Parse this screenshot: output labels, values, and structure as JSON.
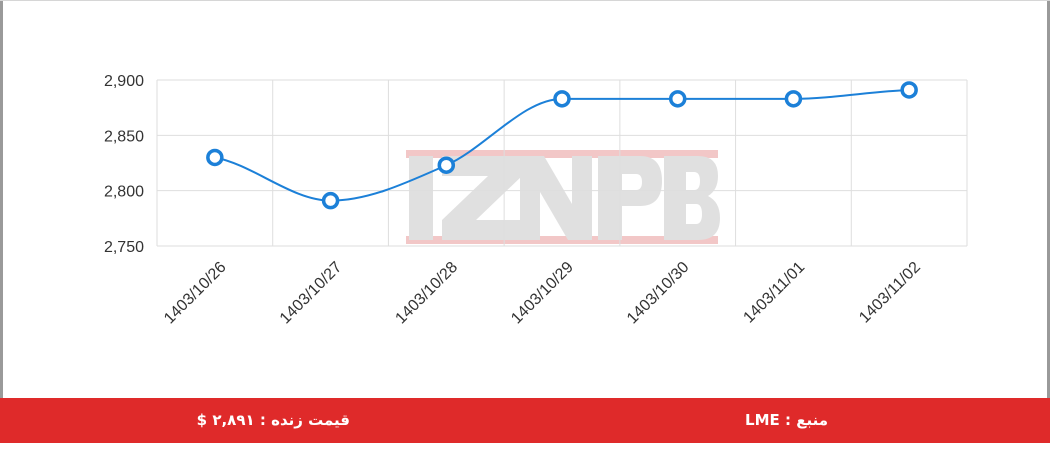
{
  "chart_data": {
    "type": "line",
    "categories": [
      "1403/10/26",
      "1403/10/27",
      "1403/10/28",
      "1403/10/29",
      "1403/10/30",
      "1403/11/01",
      "1403/11/02"
    ],
    "series": [
      {
        "values": [
          2830,
          2791,
          2823,
          2883,
          2883,
          2883,
          2891
        ]
      }
    ],
    "ylim": [
      2750,
      2900
    ],
    "yticks": [
      "2,750",
      "2,800",
      "2,850",
      "2,900"
    ],
    "ytick_values": [
      2750,
      2800,
      2850,
      2900
    ],
    "grid": true,
    "smooth": true,
    "line_color": "#1c80d8",
    "marker_fill": "#ffffff",
    "grid_color": "#dedede"
  },
  "watermark": "IZNPB",
  "footer": {
    "live_price": "قیمت زنده : ۲,۸۹۱ $",
    "source": "منبع : LME"
  },
  "colors": {
    "footer_bg": "#df2a2a",
    "watermark_gray": "#c8c8c8",
    "watermark_red": "#e89a9a"
  }
}
